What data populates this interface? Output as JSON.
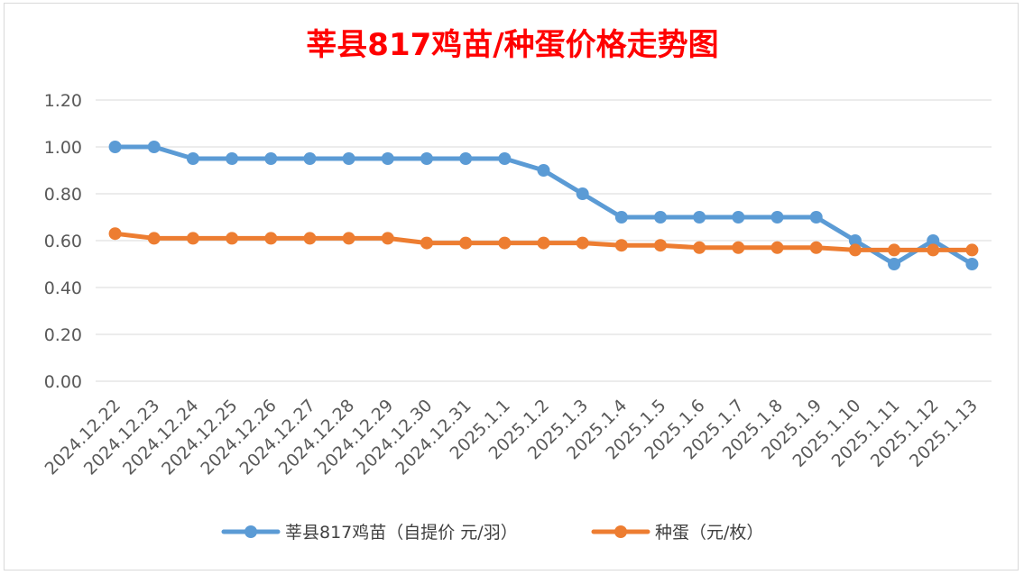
{
  "chart_data": {
    "type": "line",
    "title": "莘县817鸡苗/种蛋价格走势图",
    "categories": [
      "2024.12.22",
      "2024.12.23",
      "2024.12.24",
      "2024.12.25",
      "2024.12.26",
      "2024.12.27",
      "2024.12.28",
      "2024.12.29",
      "2024.12.30",
      "2024.12.31",
      "2025.1.1",
      "2025.1.2",
      "2025.1.3",
      "2025.1.4",
      "2025.1.5",
      "2025.1.6",
      "2025.1.7",
      "2025.1.8",
      "2025.1.9",
      "2025.1.10",
      "2025.1.11",
      "2025.1.12",
      "2025.1.13"
    ],
    "series": [
      {
        "name": "莘县817鸡苗（自提价 元/羽）",
        "color": "#5b9bd5",
        "values": [
          1.0,
          1.0,
          0.95,
          0.95,
          0.95,
          0.95,
          0.95,
          0.95,
          0.95,
          0.95,
          0.95,
          0.9,
          0.8,
          0.7,
          0.7,
          0.7,
          0.7,
          0.7,
          0.7,
          0.6,
          0.5,
          0.6,
          0.5
        ]
      },
      {
        "name": "种蛋（元/枚）",
        "color": "#ed7d31",
        "values": [
          0.63,
          0.61,
          0.61,
          0.61,
          0.61,
          0.61,
          0.61,
          0.61,
          0.59,
          0.59,
          0.59,
          0.59,
          0.59,
          0.58,
          0.58,
          0.57,
          0.57,
          0.57,
          0.57,
          0.56,
          0.56,
          0.56,
          0.56
        ]
      }
    ],
    "yticks": [
      "0.00",
      "0.20",
      "0.40",
      "0.60",
      "0.80",
      "1.00",
      "1.20"
    ],
    "ylim": [
      0,
      1.2
    ],
    "grid": true,
    "legend_position": "bottom",
    "title_color": "#ff0000"
  }
}
